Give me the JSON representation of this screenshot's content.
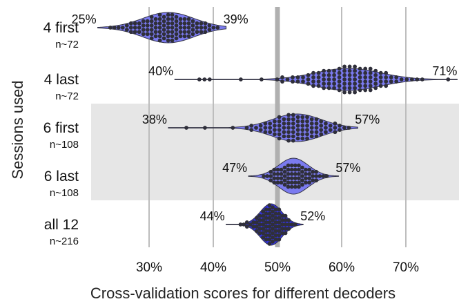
{
  "chart_data": {
    "type": "violin-swarm",
    "xlabel": "Cross-validation scores for different decoders",
    "ylabel": "Sessions used",
    "xlim": [
      20,
      78
    ],
    "xticks": [
      {
        "value": 30,
        "label": "30%"
      },
      {
        "value": 40,
        "label": "40%"
      },
      {
        "value": 50,
        "label": "50%"
      },
      {
        "value": 60,
        "label": "60%"
      },
      {
        "value": 70,
        "label": "70%"
      }
    ],
    "chance_level": 50,
    "colors": {
      "violin_light": "#7b7bf0",
      "violin_dark": "#3333dd",
      "dots": "#2f2f3a",
      "gridline": "#bdbdbd",
      "chance_line": "#b0b0b0",
      "band": "#e6e6e6"
    },
    "highlight_groups": [
      "6 first",
      "6 last"
    ],
    "groups": [
      {
        "name": "4 first",
        "n_label": "n~72",
        "min_label": "25%",
        "max_label": "39%",
        "min": 22,
        "max": 42,
        "center": 33,
        "spread": 4.0
      },
      {
        "name": "4 last",
        "n_label": "n~72",
        "min_label": "40%",
        "max_label": "71%",
        "min": 34,
        "max": 78,
        "center": 61,
        "spread": 5.0
      },
      {
        "name": "6 first",
        "n_label": "n~108",
        "min_label": "38%",
        "max_label": "57%",
        "min": 33,
        "max": 62.5,
        "center": 53,
        "spread": 3.8
      },
      {
        "name": "6 last",
        "n_label": "n~108",
        "min_label": "47%",
        "max_label": "57%",
        "min": 45.5,
        "max": 59.5,
        "center": 52.5,
        "spread": 2.3
      },
      {
        "name": "all 12",
        "n_label": "n~216",
        "min_label": "44%",
        "max_label": "52%",
        "min": 42,
        "max": 54,
        "center": 49,
        "spread": 1.7
      }
    ]
  }
}
